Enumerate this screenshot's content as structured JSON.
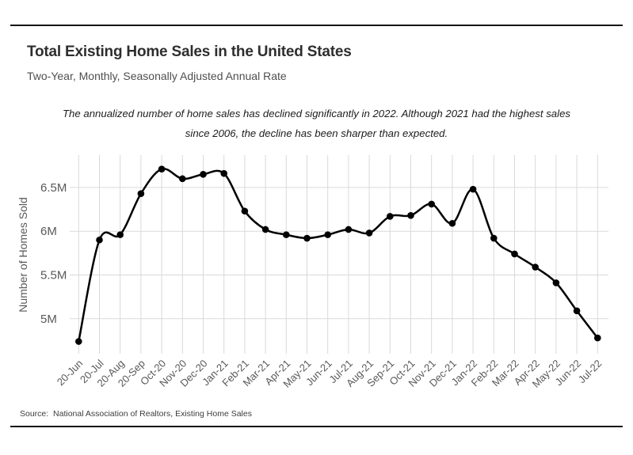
{
  "page": {
    "title": "Total Existing Home Sales in the United States",
    "subtitle": "Two-Year, Monthly, Seasonally Adjusted Annual Rate",
    "annotation_line1": "The annualized number of home sales has declined significantly in 2022. Although 2021 had the highest sales",
    "annotation_line2": "since 2006, the decline has been sharper than expected.",
    "source": "Source:  National Association of Realtors, Existing Home Sales"
  },
  "colors": {
    "line": "#000000",
    "marker": "#000000",
    "grid": "#d9d9d9",
    "axis_text": "#595959",
    "rule": "#141414"
  },
  "chart_data": {
    "type": "line",
    "title": "Total Existing Home Sales in the United States",
    "xlabel": "",
    "ylabel": "Number of Homes Sold",
    "categories": [
      "20-Jun",
      "20-Jul",
      "20-Aug",
      "20-Sep",
      "Oct-20",
      "Nov-20",
      "Dec-20",
      "Jan-21",
      "Feb-21",
      "Mar-21",
      "Apr-21",
      "May-21",
      "Jun-21",
      "Jul-21",
      "Aug-21",
      "Sep-21",
      "Oct-21",
      "Nov-21",
      "Dec-21",
      "Jan-22",
      "Feb-22",
      "Mar-22",
      "Apr-22",
      "May-22",
      "Jun-22",
      "Jul-22"
    ],
    "values": [
      4.74,
      5.9,
      5.96,
      6.43,
      6.71,
      6.6,
      6.65,
      6.66,
      6.23,
      6.02,
      5.96,
      5.92,
      5.96,
      6.02,
      5.98,
      6.17,
      6.18,
      6.31,
      6.09,
      6.48,
      5.92,
      5.74,
      5.59,
      5.41,
      5.09,
      4.78
    ],
    "units": "millions of homes, SAAR",
    "y_ticks": [
      {
        "value": 5.0,
        "label": "5M"
      },
      {
        "value": 5.5,
        "label": "5.5M"
      },
      {
        "value": 6.0,
        "label": "6M"
      },
      {
        "value": 6.5,
        "label": "6.5M"
      }
    ],
    "ylim": [
      4.6,
      6.87
    ],
    "grid": true,
    "legend": "none",
    "marker": "circle"
  }
}
